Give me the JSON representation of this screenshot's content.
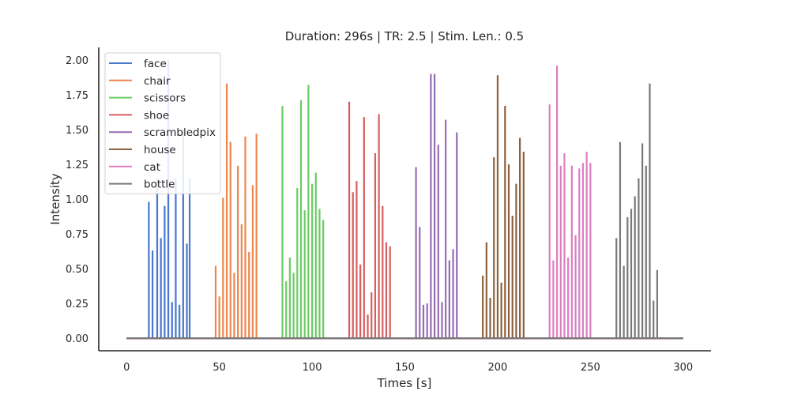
{
  "chart_data": {
    "type": "bar",
    "title": "Duration: 296s | TR: 2.5 | Stim. Len.: 0.5",
    "xlabel": "Times [s]",
    "ylabel": "Intensity",
    "xlim": [
      -15,
      315
    ],
    "ylim": [
      -0.09,
      2.09
    ],
    "xticks": [
      0,
      50,
      100,
      150,
      200,
      250,
      300
    ],
    "yticks": [
      0.0,
      0.25,
      0.5,
      0.75,
      1.0,
      1.25,
      1.5,
      1.75,
      2.0
    ],
    "grid": false,
    "legend_position": "top-left",
    "baseline_end": 300,
    "series": [
      {
        "name": "face",
        "color": "#4878cf",
        "x": [
          12,
          14,
          16.5,
          18.5,
          20.5,
          22.5,
          24.5,
          26.5,
          28.5,
          30.5,
          32.5,
          34
        ],
        "values": [
          0.98,
          0.63,
          1.15,
          0.72,
          0.95,
          2.0,
          0.26,
          1.15,
          0.24,
          1.5,
          0.68,
          1.15
        ]
      },
      {
        "name": "chair",
        "color": "#ee854a",
        "x": [
          48,
          50,
          52,
          54,
          56,
          58,
          60,
          62,
          64,
          66,
          68,
          70
        ],
        "values": [
          0.52,
          0.3,
          1.01,
          1.83,
          1.41,
          0.47,
          1.24,
          0.82,
          1.45,
          0.62,
          1.1,
          1.47
        ]
      },
      {
        "name": "scissors",
        "color": "#6acc64",
        "x": [
          84,
          86,
          88,
          90,
          92,
          94,
          96,
          98,
          100,
          102,
          104,
          106
        ],
        "values": [
          1.67,
          0.41,
          0.58,
          0.47,
          1.08,
          1.71,
          0.92,
          1.82,
          1.11,
          1.19,
          0.93,
          0.85
        ]
      },
      {
        "name": "shoe",
        "color": "#d65f5f",
        "x": [
          120,
          122,
          124,
          126,
          128,
          130,
          132,
          134,
          136,
          138,
          140,
          142
        ],
        "values": [
          1.7,
          1.05,
          1.13,
          0.53,
          1.59,
          0.17,
          0.33,
          1.33,
          1.61,
          0.95,
          0.69,
          0.66
        ]
      },
      {
        "name": "scrambledpix",
        "color": "#956cb4",
        "x": [
          156,
          158,
          160,
          162,
          164,
          166,
          168,
          170,
          172,
          174,
          176,
          178
        ],
        "values": [
          1.23,
          0.8,
          0.24,
          0.25,
          1.9,
          1.9,
          1.39,
          0.26,
          1.57,
          0.56,
          0.64,
          1.48
        ]
      },
      {
        "name": "house",
        "color": "#8c613c",
        "x": [
          192,
          194,
          196,
          198,
          200,
          202,
          204,
          206,
          208,
          210,
          212,
          214
        ],
        "values": [
          0.45,
          0.69,
          0.29,
          1.3,
          1.89,
          0.4,
          1.67,
          1.25,
          0.88,
          1.11,
          1.44,
          1.34
        ]
      },
      {
        "name": "cat",
        "color": "#dc7ec0",
        "x": [
          228,
          230,
          232,
          234,
          236,
          238,
          240,
          242,
          244,
          246,
          248,
          250
        ],
        "values": [
          1.68,
          0.56,
          1.96,
          1.24,
          1.33,
          0.58,
          1.24,
          0.74,
          1.22,
          1.26,
          1.34,
          1.26
        ]
      },
      {
        "name": "bottle",
        "color": "#797979",
        "x": [
          264,
          266,
          268,
          270,
          272,
          274,
          276,
          278,
          280,
          282,
          284,
          286
        ],
        "values": [
          0.72,
          1.41,
          0.52,
          0.87,
          0.93,
          1.02,
          1.15,
          1.4,
          1.24,
          1.83,
          0.27,
          0.49
        ]
      }
    ]
  }
}
